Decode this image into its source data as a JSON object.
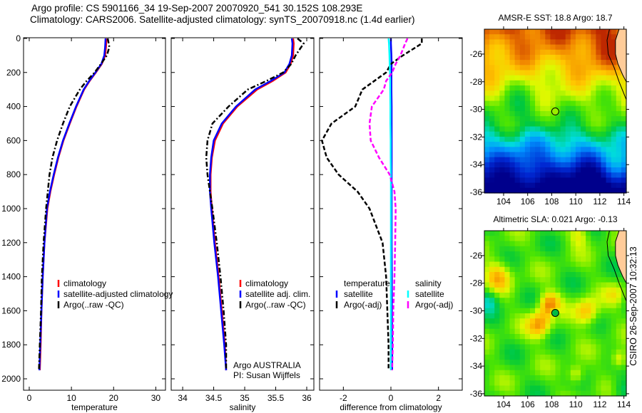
{
  "header": {
    "line1": "Argo profile: CS 5901166_34 19-Sep-2007 20070920_541 30.152S 108.293E",
    "line2": "Climatology: CARS2006. Satellite-adjusted climatology: synTS_20070918.nc (1.4d earlier)"
  },
  "stamp": "CSIRO 26-Sep-2007 10:32:13",
  "chart_data": [
    {
      "type": "line",
      "id": "temperature",
      "xlabel": "temperature",
      "ylabel": "",
      "xlim": [
        -1.35,
        32.3
      ],
      "ylim": [
        2067,
        -4
      ],
      "xticks": [
        0,
        10,
        20,
        30
      ],
      "yticks": [
        0,
        200,
        400,
        600,
        800,
        1000,
        1200,
        1400,
        1600,
        1800,
        2000
      ],
      "depth": [
        0,
        50,
        100,
        150,
        200,
        250,
        300,
        400,
        500,
        600,
        700,
        800,
        900,
        1000,
        1200,
        1400,
        1600,
        1800,
        1950
      ],
      "series": [
        {
          "name": "climatology",
          "color": "#ff0000",
          "style": "solid",
          "values": [
            18.3,
            18.2,
            18.0,
            17.2,
            15.8,
            14.3,
            13.0,
            11.2,
            9.6,
            8.1,
            6.9,
            5.9,
            5.0,
            4.3,
            3.6,
            3.2,
            2.9,
            2.7,
            2.5
          ]
        },
        {
          "name": "satellite-adjusted climatology",
          "color": "#0000ff",
          "style": "solid",
          "values": [
            18.1,
            18.0,
            17.8,
            17.1,
            15.7,
            14.2,
            12.9,
            11.1,
            9.5,
            8.0,
            6.8,
            5.8,
            4.9,
            4.2,
            3.6,
            3.2,
            2.9,
            2.6,
            2.4
          ]
        },
        {
          "name": "Argo(..raw -QC)",
          "color": "#000000",
          "style": "dashdot",
          "values": [
            18.6,
            19.0,
            18.4,
            17.0,
            15.5,
            13.6,
            12.0,
            9.6,
            8.0,
            6.6,
            5.5,
            4.8,
            4.4,
            4.0,
            3.4,
            3.0,
            2.8,
            2.5,
            2.3
          ]
        }
      ]
    },
    {
      "type": "line",
      "id": "salinity",
      "xlabel": "salinity",
      "xlim": [
        33.815,
        36.115
      ],
      "ylim": [
        2067,
        -4
      ],
      "xticks": [
        34,
        34.5,
        35,
        35.5,
        36
      ],
      "depth": [
        0,
        30,
        100,
        150,
        200,
        250,
        300,
        400,
        500,
        600,
        700,
        800,
        900,
        1000,
        1200,
        1400,
        1600,
        1800,
        1950
      ],
      "series": [
        {
          "name": "climatology",
          "color": "#ff0000",
          "style": "solid",
          "values": [
            35.78,
            35.79,
            35.78,
            35.74,
            35.66,
            35.45,
            35.2,
            34.88,
            34.65,
            34.52,
            34.47,
            34.45,
            34.45,
            34.47,
            34.52,
            34.58,
            34.63,
            34.68,
            34.7
          ]
        },
        {
          "name": "satellite adj. clim.",
          "color": "#0000ff",
          "style": "solid",
          "values": [
            35.76,
            35.77,
            35.76,
            35.72,
            35.64,
            35.42,
            35.17,
            34.86,
            34.63,
            34.5,
            34.46,
            34.44,
            34.44,
            34.46,
            34.51,
            34.57,
            34.62,
            34.67,
            34.7
          ]
        },
        {
          "name": "Argo(..raw -QC)",
          "color": "#000000",
          "style": "dashdot",
          "values": [
            35.85,
            35.95,
            35.82,
            35.75,
            35.62,
            35.35,
            35.05,
            34.74,
            34.48,
            34.4,
            34.38,
            34.4,
            34.44,
            34.48,
            34.55,
            34.61,
            34.66,
            34.7,
            34.7
          ]
        }
      ],
      "annotation": [
        "Argo AUSTRALIA",
        "PI: Susan Wijffels"
      ]
    },
    {
      "type": "line",
      "id": "difference",
      "xlabel": "difference from climatology",
      "xlim": [
        -3,
        3
      ],
      "ylim": [
        2067,
        -4
      ],
      "xticks": [
        -2,
        0,
        2
      ],
      "depth": [
        0,
        30,
        100,
        150,
        200,
        250,
        300,
        400,
        500,
        600,
        700,
        800,
        900,
        1000,
        1200,
        1400,
        1600,
        1800,
        1950
      ],
      "legend_groups": [
        "temperature",
        "salinity"
      ],
      "series": [
        {
          "name": "satellite",
          "group": "temperature",
          "color": "#0000ff",
          "style": "solid",
          "values": [
            0.0,
            0.0,
            0.02,
            0.03,
            0.02,
            0.02,
            0.02,
            0.03,
            0.03,
            0.03,
            0.03,
            0.03,
            0.03,
            0.03,
            0.03,
            0.04,
            0.04,
            0.05,
            0.05
          ]
        },
        {
          "name": "Argo(-adj)",
          "group": "temperature",
          "color": "#000000",
          "style": "dashed",
          "values": [
            1.3,
            1.3,
            0.5,
            0.0,
            -0.2,
            -0.7,
            -1.2,
            -1.5,
            -2.5,
            -2.9,
            -2.7,
            -2.2,
            -1.4,
            -0.9,
            -0.35,
            -0.2,
            -0.15,
            -0.1,
            -0.1
          ]
        },
        {
          "name": "satellite",
          "group": "salinity",
          "color": "#00ffff",
          "style": "solid",
          "values": [
            -0.1,
            -0.08,
            -0.06,
            -0.05,
            -0.04,
            -0.03,
            -0.03,
            -0.02,
            -0.02,
            -0.01,
            -0.01,
            0.0,
            0.0,
            0.0,
            0.0,
            0.0,
            0.0,
            0.0,
            0.0
          ]
        },
        {
          "name": "Argo(-adj)",
          "group": "salinity",
          "color": "#ff00ff",
          "style": "dashed",
          "values": [
            0.7,
            0.6,
            0.4,
            0.2,
            0.05,
            -0.2,
            -0.3,
            -0.8,
            -0.9,
            -0.85,
            -0.5,
            -0.05,
            0.15,
            0.2,
            0.18,
            0.15,
            0.1,
            0.08,
            0.05
          ]
        }
      ]
    },
    {
      "type": "heatmap",
      "id": "sst-map",
      "title": "AMSR-E SST: 18.8 Argo: 18.7",
      "xlim": [
        102.4,
        114.2
      ],
      "ylim": [
        -36.05,
        -24.2
      ],
      "xticks": [
        104,
        106,
        108,
        110,
        112,
        114
      ],
      "yticks": [
        -26,
        -28,
        -30,
        -32,
        -34,
        -36
      ],
      "marker": {
        "lon": 108.293,
        "lat": -30.152,
        "color": "#99ee00"
      }
    },
    {
      "type": "heatmap",
      "id": "sla-map",
      "title": "Altimetric SLA: 0.021 Argo: -0.13",
      "xlim": [
        102.4,
        114.2
      ],
      "ylim": [
        -36.16,
        -24.2
      ],
      "xticks": [
        104,
        106,
        108,
        110,
        112,
        114
      ],
      "yticks": [
        -26,
        -28,
        -30,
        -32,
        -34,
        -36
      ],
      "marker": {
        "lon": 108.293,
        "lat": -30.152,
        "color": "#00bb44"
      }
    }
  ]
}
